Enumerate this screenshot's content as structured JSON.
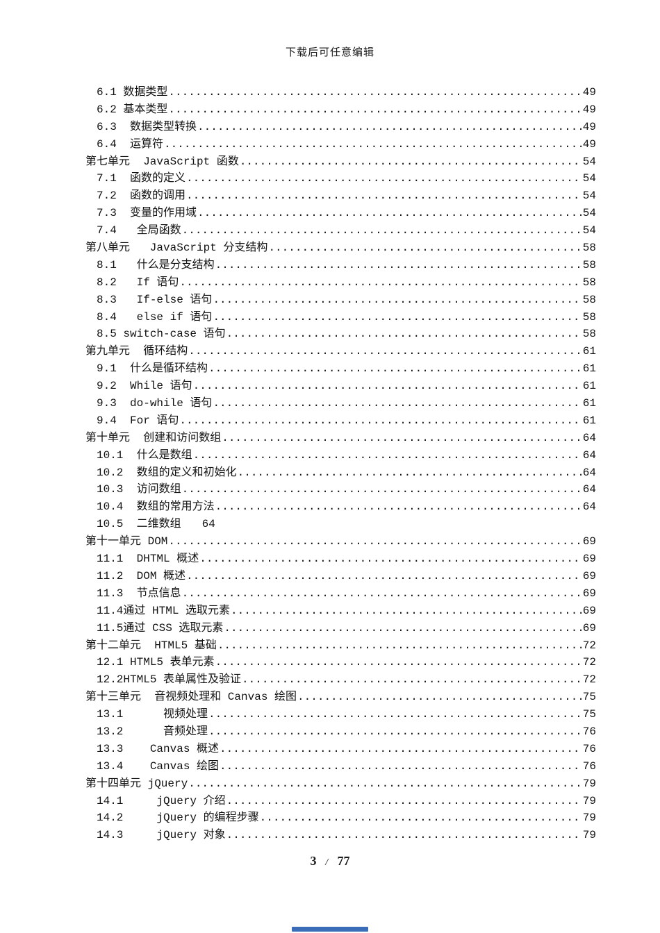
{
  "page": {
    "header": "下载后可任意编辑",
    "footer": {
      "current": "3",
      "separator": "/",
      "total": "77"
    }
  },
  "colors": {
    "text": "#111111",
    "background": "#ffffff",
    "bottom_bar": "#3b6cb8"
  },
  "toc": {
    "entries": [
      {
        "label": "6.1 数据类型",
        "page": "49",
        "level": "sub",
        "leaders": true,
        "inline": false
      },
      {
        "label": "6.2 基本类型",
        "page": "49",
        "level": "sub",
        "leaders": true,
        "inline": false
      },
      {
        "label": "6.3  数据类型转换",
        "page": "49",
        "level": "sub",
        "leaders": true,
        "inline": false
      },
      {
        "label": "6.4  运算符",
        "page": "49",
        "level": "sub",
        "leaders": true,
        "inline": false
      },
      {
        "label": "第七单元  JavaScript 函数",
        "page": "54",
        "level": "chapter",
        "leaders": true,
        "inline": false
      },
      {
        "label": "7.1  函数的定义",
        "page": "54",
        "level": "sub",
        "leaders": true,
        "inline": false
      },
      {
        "label": "7.2  函数的调用",
        "page": "54",
        "level": "sub",
        "leaders": true,
        "inline": false
      },
      {
        "label": "7.3  变量的作用域",
        "page": "54",
        "level": "sub",
        "leaders": true,
        "inline": false
      },
      {
        "label": "7.4   全局函数",
        "page": "54",
        "level": "sub",
        "leaders": true,
        "inline": false
      },
      {
        "label": "第八单元   JavaScript 分支结构",
        "page": "58",
        "level": "chapter",
        "leaders": true,
        "inline": false
      },
      {
        "label": "8.1   什么是分支结构",
        "page": "58",
        "level": "sub",
        "leaders": true,
        "inline": false
      },
      {
        "label": "8.2   If 语句",
        "page": "58",
        "level": "sub",
        "leaders": true,
        "inline": false
      },
      {
        "label": "8.3   If-else 语句",
        "page": "58",
        "level": "sub",
        "leaders": true,
        "inline": false
      },
      {
        "label": "8.4   else if 语句",
        "page": "58",
        "level": "sub",
        "leaders": true,
        "inline": false
      },
      {
        "label": "8.5 switch-case 语句",
        "page": "58",
        "level": "sub",
        "leaders": true,
        "inline": false
      },
      {
        "label": "第九单元  循环结构",
        "page": "61",
        "level": "chapter",
        "leaders": true,
        "inline": false
      },
      {
        "label": "9.1  什么是循环结构",
        "page": "61",
        "level": "sub",
        "leaders": true,
        "inline": false
      },
      {
        "label": "9.2  While 语句",
        "page": "61",
        "level": "sub",
        "leaders": true,
        "inline": false
      },
      {
        "label": "9.3  do-while 语句",
        "page": "61",
        "level": "sub",
        "leaders": true,
        "inline": false
      },
      {
        "label": "9.4  For 语句",
        "page": "61",
        "level": "sub",
        "leaders": true,
        "inline": false
      },
      {
        "label": "第十单元  创建和访问数组",
        "page": "64",
        "level": "chapter",
        "leaders": true,
        "inline": false
      },
      {
        "label": "10.1  什么是数组",
        "page": "64",
        "level": "sub",
        "leaders": true,
        "inline": false
      },
      {
        "label": "10.2  数组的定义和初始化",
        "page": "64",
        "level": "sub",
        "leaders": true,
        "inline": false
      },
      {
        "label": "10.3  访问数组",
        "page": "64",
        "level": "sub",
        "leaders": true,
        "inline": false
      },
      {
        "label": "10.4  数组的常用方法",
        "page": "64",
        "level": "sub",
        "leaders": true,
        "inline": false
      },
      {
        "label": "10.5  二维数组",
        "page": "64",
        "level": "sub",
        "leaders": false,
        "inline": true
      },
      {
        "label": "第十一单元 DOM",
        "page": "69",
        "level": "chapter",
        "leaders": true,
        "inline": false
      },
      {
        "label": "11.1  DHTML 概述",
        "page": "69",
        "level": "sub",
        "leaders": true,
        "inline": false
      },
      {
        "label": "11.2  DOM 概述",
        "page": "69",
        "level": "sub",
        "leaders": true,
        "inline": false
      },
      {
        "label": "11.3  节点信息",
        "page": "69",
        "level": "sub",
        "leaders": true,
        "inline": false
      },
      {
        "label": "11.4通过 HTML 选取元素",
        "page": "69",
        "level": "sub",
        "leaders": true,
        "inline": false
      },
      {
        "label": "11.5通过 CSS 选取元素",
        "page": "69",
        "level": "sub",
        "leaders": true,
        "inline": false
      },
      {
        "label": "第十二单元  HTML5 基础",
        "page": "72",
        "level": "chapter",
        "leaders": true,
        "inline": false
      },
      {
        "label": "12.1 HTML5 表单元素",
        "page": "72",
        "level": "sub",
        "leaders": true,
        "inline": false
      },
      {
        "label": "12.2HTML5 表单属性及验证",
        "page": "72",
        "level": "sub",
        "leaders": true,
        "inline": false
      },
      {
        "label": "第十三单元  音视频处理和 Canvas 绘图",
        "page": "75",
        "level": "chapter",
        "leaders": true,
        "inline": false
      },
      {
        "label": "13.1      视频处理",
        "page": "75",
        "level": "sub",
        "leaders": true,
        "inline": false
      },
      {
        "label": "13.2      音频处理",
        "page": "76",
        "level": "sub",
        "leaders": true,
        "inline": false
      },
      {
        "label": "13.3    Canvas 概述",
        "page": "76",
        "level": "sub",
        "leaders": true,
        "inline": false
      },
      {
        "label": "13.4    Canvas 绘图",
        "page": "76",
        "level": "sub",
        "leaders": true,
        "inline": false
      },
      {
        "label": "第十四单元 jQuery",
        "page": "79",
        "level": "chapter",
        "leaders": true,
        "inline": false
      },
      {
        "label": "14.1     jQuery 介绍",
        "page": "79",
        "level": "sub",
        "leaders": true,
        "inline": false
      },
      {
        "label": "14.2     jQuery 的编程步骤",
        "page": "79",
        "level": "sub",
        "leaders": true,
        "inline": false
      },
      {
        "label": "14.3     jQuery 对象",
        "page": "79",
        "level": "sub",
        "leaders": true,
        "inline": false
      }
    ]
  }
}
